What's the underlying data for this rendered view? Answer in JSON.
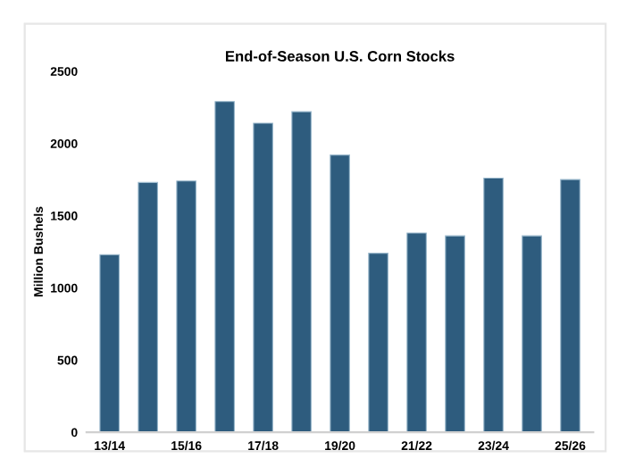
{
  "chart_data": {
    "type": "bar",
    "title": "End-of-Season U.S. Corn Stocks",
    "ylabel": "Million Bushels",
    "categories": [
      "13/14",
      null,
      "15/16",
      null,
      "17/18",
      null,
      "19/20",
      null,
      "21/22",
      null,
      "23/24",
      null,
      "25/26"
    ],
    "values": [
      1230,
      1730,
      1740,
      2290,
      2140,
      2220,
      1920,
      1240,
      1380,
      1360,
      1760,
      1360,
      1750
    ],
    "color": "#2e5c7e",
    "ylim": [
      0,
      2500
    ],
    "yticks": [
      0,
      500,
      1000,
      1500,
      2000,
      2500
    ],
    "grid": false
  }
}
